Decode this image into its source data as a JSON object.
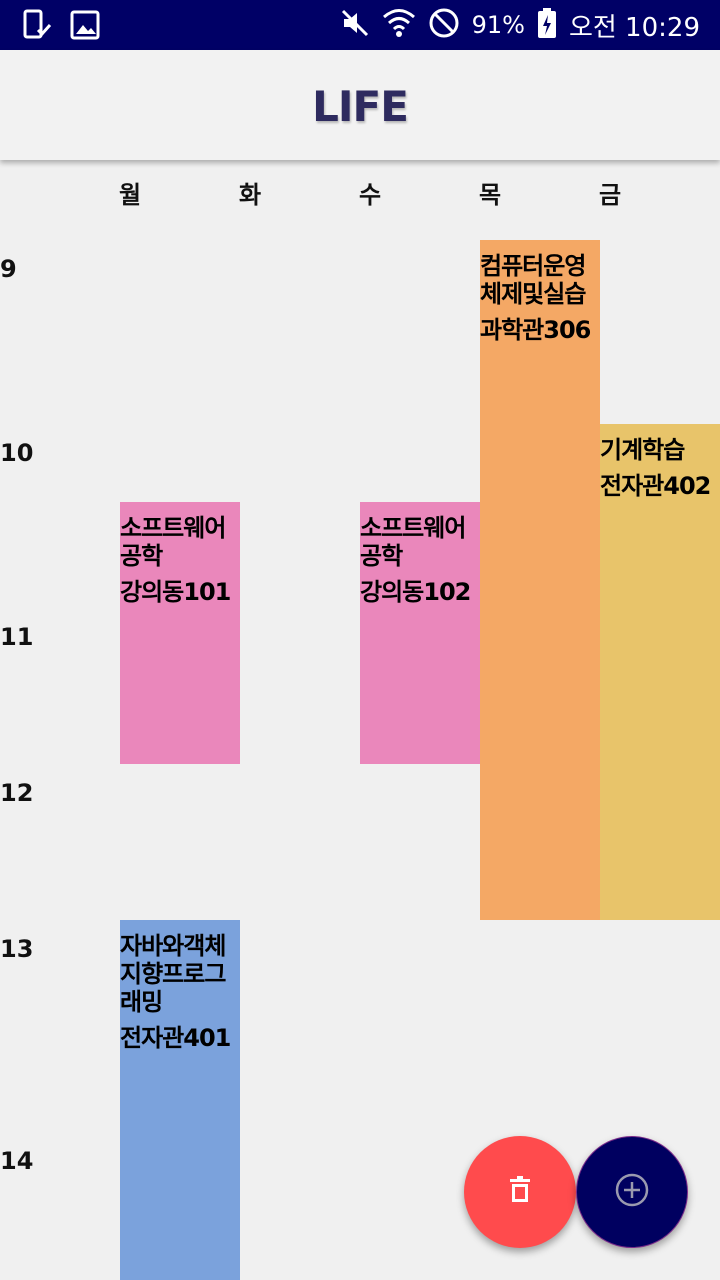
{
  "status_bar": {
    "time": "오전 10:29",
    "battery_percent": "91%",
    "icons": [
      "device-check-icon",
      "image-icon",
      "mute-icon",
      "wifi-icon",
      "do-not-disturb-icon",
      "battery-charging-icon"
    ],
    "background": "#000066"
  },
  "app_bar": {
    "title": "LIFE",
    "title_color": "#2e2b5f"
  },
  "timetable": {
    "days": [
      "월",
      "화",
      "수",
      "목",
      "금"
    ],
    "hours": [
      "9",
      "10",
      "11",
      "12",
      "13",
      "14"
    ],
    "classes": [
      {
        "name": "소프트웨어공학",
        "room": "강의동101",
        "day": "월",
        "color": "#ea87bb"
      },
      {
        "name": "소프트웨어공학",
        "room": "강의동102",
        "day": "수",
        "color": "#ea87bb"
      },
      {
        "name": "컴퓨터운영체제및실습",
        "room": "과학관306",
        "day": "목",
        "color": "#f4a865"
      },
      {
        "name": "기계학습",
        "room": "전자관402",
        "day": "금",
        "color": "#e8c46a"
      },
      {
        "name": "자바와객체지향프로그래밍",
        "room": "전자관401",
        "day": "월",
        "color": "#7ba2dc"
      }
    ]
  },
  "fabs": {
    "delete_icon": "trash-icon",
    "add_icon": "plus-circle-icon",
    "delete_color": "#ff4b4d",
    "add_color": "#000060"
  }
}
